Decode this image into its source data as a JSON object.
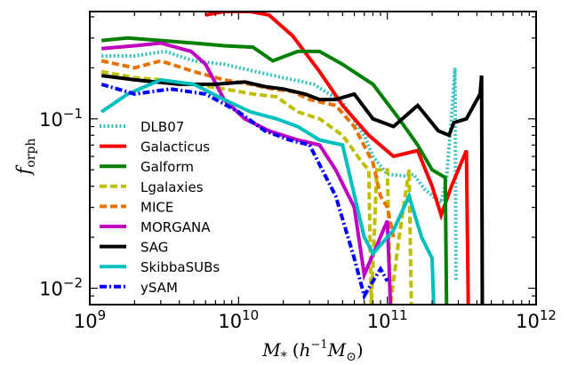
{
  "chart_data": {
    "type": "line",
    "xlabel": "M_*(h^{-1}M_⊙)",
    "xlabel_parts": {
      "var": "M",
      "sub": "*",
      "open": "(",
      "h": "h",
      "exp": "−1",
      "M": "M",
      "sun": "⊙",
      "close": ")"
    },
    "ylabel": "f_orph",
    "ylabel_parts": {
      "var": "f",
      "sub": "orph"
    },
    "x_scale": "log",
    "y_scale": "log",
    "xlim": [
      1000000000.0,
      1000000000000.0
    ],
    "ylim": [
      0.008,
      0.43
    ],
    "x_ticks": [
      {
        "value": 1000000000.0,
        "base": "10",
        "exp": "9"
      },
      {
        "value": 10000000000.0,
        "base": "10",
        "exp": "10"
      },
      {
        "value": 100000000000.0,
        "base": "10",
        "exp": "11"
      },
      {
        "value": 1000000000000.0,
        "base": "10",
        "exp": "12"
      }
    ],
    "y_ticks": [
      {
        "value": 0.01,
        "base": "10",
        "exp": "−2"
      },
      {
        "value": 0.1,
        "base": "10",
        "exp": "−1"
      }
    ],
    "legend_placement": "left",
    "series": [
      {
        "name": "DLB07",
        "color": "#33bfbf",
        "style": "dotted",
        "points": [
          [
            1200000000.0,
            0.235
          ],
          [
            2000000000.0,
            0.235
          ],
          [
            3200000000.0,
            0.25
          ],
          [
            5000000000.0,
            0.22
          ],
          [
            8000000000.0,
            0.21
          ],
          [
            13000000000.0,
            0.19
          ],
          [
            20000000000.0,
            0.175
          ],
          [
            32000000000.0,
            0.16
          ],
          [
            50000000000.0,
            0.125
          ],
          [
            70000000000.0,
            0.08
          ],
          [
            80000000000.0,
            0.06
          ],
          [
            100000000000.0,
            0.047
          ],
          [
            130000000000.0,
            0.046
          ],
          [
            150000000000.0,
            0.047
          ],
          [
            180000000000.0,
            0.038
          ],
          [
            230000000000.0,
            0.032
          ],
          [
            250000000000.0,
            0.045
          ],
          [
            270000000000.0,
            0.1
          ],
          [
            285000000000.0,
            0.2
          ],
          [
            290000000000.0,
            0.011
          ]
        ]
      },
      {
        "name": "Galacticus",
        "color": "#ff0000",
        "style": "solid",
        "points": [
          [
            6000000000.0,
            0.41
          ],
          [
            8000000000.0,
            0.43
          ],
          [
            12000000000.0,
            0.43
          ],
          [
            16000000000.0,
            0.41
          ],
          [
            23000000000.0,
            0.31
          ],
          [
            35000000000.0,
            0.19
          ],
          [
            50000000000.0,
            0.12
          ],
          [
            75000000000.0,
            0.08
          ],
          [
            110000000000.0,
            0.06
          ],
          [
            160000000000.0,
            0.065
          ],
          [
            200000000000.0,
            0.04
          ],
          [
            230000000000.0,
            0.027
          ],
          [
            270000000000.0,
            0.04
          ],
          [
            340000000000.0,
            0.065
          ],
          [
            350000000000.0,
            0.008
          ]
        ]
      },
      {
        "name": "Galform",
        "color": "#008000",
        "style": "solid",
        "points": [
          [
            1200000000.0,
            0.29
          ],
          [
            1800000000.0,
            0.3
          ],
          [
            3000000000.0,
            0.29
          ],
          [
            5000000000.0,
            0.28
          ],
          [
            8000000000.0,
            0.27
          ],
          [
            12500000000.0,
            0.265
          ],
          [
            17000000000.0,
            0.22
          ],
          [
            25000000000.0,
            0.25
          ],
          [
            35000000000.0,
            0.25
          ],
          [
            50000000000.0,
            0.21
          ],
          [
            80000000000.0,
            0.16
          ],
          [
            120000000000.0,
            0.1
          ],
          [
            160000000000.0,
            0.07
          ],
          [
            200000000000.0,
            0.05
          ],
          [
            245000000000.0,
            0.045
          ],
          [
            250000000000.0,
            0.008
          ]
        ]
      },
      {
        "name": "Lgalaxies",
        "color": "#bfbf00",
        "style": "dashed",
        "points": [
          [
            1200000000.0,
            0.19
          ],
          [
            2000000000.0,
            0.175
          ],
          [
            3000000000.0,
            0.17
          ],
          [
            5000000000.0,
            0.16
          ],
          [
            8000000000.0,
            0.15
          ],
          [
            12500000000.0,
            0.14
          ],
          [
            18000000000.0,
            0.135
          ],
          [
            25000000000.0,
            0.11
          ],
          [
            35000000000.0,
            0.1
          ],
          [
            50000000000.0,
            0.08
          ],
          [
            68000000000.0,
            0.055
          ],
          [
            75000000000.0,
            0.05
          ],
          [
            78000000000.0,
            0.008
          ],
          [
            85000000000.0,
            0.05
          ],
          [
            100000000000.0,
            0.05
          ],
          [
            105000000000.0,
            0.008
          ],
          [
            120000000000.0,
            0.02
          ],
          [
            140000000000.0,
            0.05
          ],
          [
            145000000000.0,
            0.008
          ]
        ]
      },
      {
        "name": "MICE",
        "color": "#e67300",
        "style": "dashed",
        "points": [
          [
            1200000000.0,
            0.22
          ],
          [
            2000000000.0,
            0.2
          ],
          [
            3000000000.0,
            0.22
          ],
          [
            5000000000.0,
            0.19
          ],
          [
            8000000000.0,
            0.17
          ],
          [
            12000000000.0,
            0.16
          ],
          [
            17000000000.0,
            0.15
          ],
          [
            23000000000.0,
            0.145
          ],
          [
            30000000000.0,
            0.13
          ],
          [
            45000000000.0,
            0.12
          ],
          [
            60000000000.0,
            0.09
          ],
          [
            80000000000.0,
            0.055
          ],
          [
            90000000000.0,
            0.035
          ],
          [
            100000000000.0,
            0.03
          ],
          [
            110000000000.0,
            0.02
          ]
        ]
      },
      {
        "name": "MORGANA",
        "color": "#bf00bf",
        "style": "solid",
        "points": [
          [
            1200000000.0,
            0.26
          ],
          [
            2000000000.0,
            0.27
          ],
          [
            3000000000.0,
            0.28
          ],
          [
            4800000000.0,
            0.25
          ],
          [
            6000000000.0,
            0.21
          ],
          [
            8000000000.0,
            0.13
          ],
          [
            11000000000.0,
            0.1
          ],
          [
            16000000000.0,
            0.085
          ],
          [
            25000000000.0,
            0.075
          ],
          [
            35000000000.0,
            0.07
          ],
          [
            45000000000.0,
            0.05
          ],
          [
            60000000000.0,
            0.03
          ],
          [
            70000000000.0,
            0.012
          ],
          [
            100000000000.0,
            0.025
          ],
          [
            105000000000.0,
            0.008
          ]
        ]
      },
      {
        "name": "SAG",
        "color": "#000000",
        "style": "solid",
        "points": [
          [
            1200000000.0,
            0.18
          ],
          [
            2000000000.0,
            0.17
          ],
          [
            4000000000.0,
            0.16
          ],
          [
            7000000000.0,
            0.16
          ],
          [
            11000000000.0,
            0.165
          ],
          [
            15000000000.0,
            0.155
          ],
          [
            20000000000.0,
            0.15
          ],
          [
            28000000000.0,
            0.14
          ],
          [
            35000000000.0,
            0.13
          ],
          [
            45000000000.0,
            0.13
          ],
          [
            60000000000.0,
            0.14
          ],
          [
            80000000000.0,
            0.1
          ],
          [
            110000000000.0,
            0.09
          ],
          [
            160000000000.0,
            0.12
          ],
          [
            220000000000.0,
            0.085
          ],
          [
            260000000000.0,
            0.08
          ],
          [
            280000000000.0,
            0.095
          ],
          [
            340000000000.0,
            0.1
          ],
          [
            420000000000.0,
            0.14
          ],
          [
            430000000000.0,
            0.18
          ],
          [
            435000000000.0,
            0.008
          ]
        ]
      },
      {
        "name": "SkibbaSUBs",
        "color": "#00bfbf",
        "style": "solid",
        "points": [
          [
            1200000000.0,
            0.11
          ],
          [
            1800000000.0,
            0.14
          ],
          [
            3000000000.0,
            0.17
          ],
          [
            5000000000.0,
            0.16
          ],
          [
            8000000000.0,
            0.13
          ],
          [
            12000000000.0,
            0.11
          ],
          [
            18000000000.0,
            0.1
          ],
          [
            25000000000.0,
            0.09
          ],
          [
            35000000000.0,
            0.075
          ],
          [
            50000000000.0,
            0.07
          ],
          [
            70000000000.0,
            0.02
          ],
          [
            80000000000.0,
            0.016
          ],
          [
            110000000000.0,
            0.022
          ],
          [
            140000000000.0,
            0.035
          ],
          [
            170000000000.0,
            0.02
          ],
          [
            200000000000.0,
            0.015
          ],
          [
            205000000000.0,
            0.008
          ]
        ]
      },
      {
        "name": "ySAM",
        "color": "#0000ff",
        "style": "dashdot",
        "points": [
          [
            1200000000.0,
            0.16
          ],
          [
            2000000000.0,
            0.14
          ],
          [
            3500000000.0,
            0.15
          ],
          [
            6000000000.0,
            0.14
          ],
          [
            10000000000.0,
            0.11
          ],
          [
            15000000000.0,
            0.085
          ],
          [
            22000000000.0,
            0.075
          ],
          [
            30000000000.0,
            0.07
          ],
          [
            45000000000.0,
            0.035
          ],
          [
            60000000000.0,
            0.015
          ],
          [
            70000000000.0,
            0.009
          ],
          [
            80000000000.0,
            0.011
          ],
          [
            90000000000.0,
            0.013
          ],
          [
            100000000000.0,
            0.011
          ]
        ]
      }
    ]
  }
}
